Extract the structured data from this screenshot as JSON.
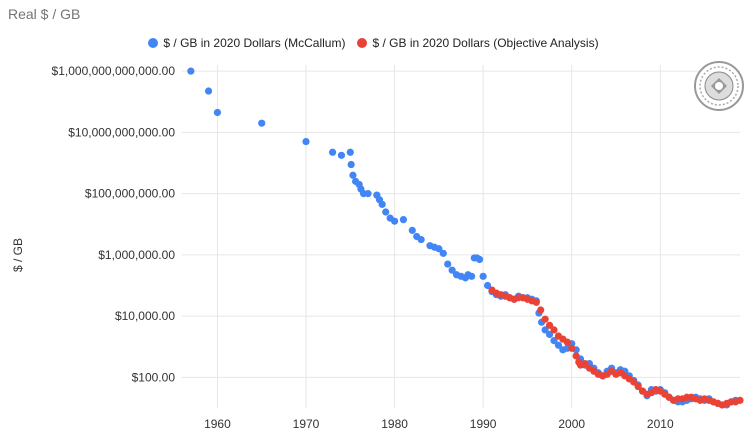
{
  "chart_data": {
    "type": "scatter",
    "title": "Real $ / GB",
    "xlabel": "",
    "ylabel": "$ / GB",
    "y_scale": "log",
    "ylim_log10": [
      1.0,
      12.2
    ],
    "xlim": [
      1956,
      2019
    ],
    "x_ticks": [
      1960,
      1970,
      1980,
      1990,
      2000,
      2010
    ],
    "y_ticks": [
      {
        "log10": 2,
        "label": "$100.00"
      },
      {
        "log10": 4,
        "label": "$10,000.00"
      },
      {
        "log10": 6,
        "label": "$1,000,000.00"
      },
      {
        "log10": 8,
        "label": "$100,000,000.00"
      },
      {
        "log10": 10,
        "label": "$10,000,000,000.00"
      },
      {
        "log10": 12,
        "label": "$1,000,000,000,000.00"
      }
    ],
    "legend_position": "top",
    "series": [
      {
        "name": "$ / GB in 2020 Dollars (McCallum)",
        "color": "#4285f4",
        "x": [
          1957,
          1959,
          1960,
          1965,
          1970,
          1973,
          1974,
          1975,
          1975.1,
          1975.3,
          1975.6,
          1976,
          1976.2,
          1976.5,
          1977,
          1978,
          1978.3,
          1978.6,
          1979,
          1979.5,
          1980,
          1981,
          1982,
          1982.5,
          1983,
          1984,
          1984.5,
          1985,
          1985.5,
          1986,
          1986.5,
          1987,
          1987.5,
          1988,
          1988.3,
          1988.7,
          1989,
          1989.3,
          1989.6,
          1990,
          1990.5,
          1991,
          1991.5,
          1992,
          1992.5,
          1993,
          1993.5,
          1994,
          1994.5,
          1995,
          1995.5,
          1996,
          1996.3,
          1996.6,
          1997,
          1997.5,
          1998,
          1998.5,
          1999,
          1999.5,
          2000,
          2000.5,
          2001,
          2001.5,
          2002,
          2002.5,
          2003,
          2003.5,
          2004,
          2004.5,
          2005,
          2005.5,
          2006,
          2006.5,
          2007,
          2007.5,
          2008,
          2008.5,
          2009,
          2009.5,
          2010,
          2010.5,
          2011,
          2011.5,
          2012,
          2012.5,
          2013,
          2013.5,
          2014,
          2014.5,
          2015,
          2015.5,
          2016,
          2016.5,
          2017,
          2017.5,
          2018,
          2018.5
        ],
        "y_log10": [
          12.0,
          11.35,
          10.65,
          10.3,
          9.7,
          9.35,
          9.25,
          9.35,
          8.95,
          8.6,
          8.4,
          8.3,
          8.15,
          8.0,
          8.0,
          7.95,
          7.8,
          7.65,
          7.4,
          7.2,
          7.1,
          7.15,
          6.8,
          6.6,
          6.5,
          6.3,
          6.25,
          6.2,
          6.05,
          5.7,
          5.5,
          5.35,
          5.3,
          5.25,
          5.35,
          5.3,
          5.9,
          5.9,
          5.85,
          5.3,
          5.0,
          4.8,
          4.7,
          4.65,
          4.7,
          4.6,
          4.55,
          4.65,
          4.6,
          4.6,
          4.55,
          4.5,
          4.1,
          3.8,
          3.55,
          3.4,
          3.2,
          3.05,
          2.9,
          2.95,
          3.1,
          2.9,
          2.6,
          2.4,
          2.45,
          2.3,
          2.15,
          2.05,
          2.2,
          2.3,
          2.15,
          2.25,
          2.2,
          2.05,
          1.9,
          1.75,
          1.55,
          1.4,
          1.6,
          1.55,
          1.6,
          1.5,
          1.35,
          1.25,
          1.2,
          1.2,
          1.25,
          1.3,
          1.35,
          1.3,
          1.25,
          1.3,
          1.2,
          1.15,
          1.1,
          1.1,
          1.2,
          1.25
        ]
      },
      {
        "name": "$ / GB in 2020 Dollars (Objective Analysis)",
        "color": "#ea4335",
        "x": [
          1991,
          1991.5,
          1992,
          1992.5,
          1993,
          1993.5,
          1994,
          1994.5,
          1995,
          1995.5,
          1996,
          1996.5,
          1997,
          1997.5,
          1998,
          1998.5,
          1999,
          1999.5,
          2000,
          2000.5,
          2000.8,
          2001,
          2001.5,
          2002,
          2002.5,
          2003,
          2003.5,
          2004,
          2004.5,
          2005,
          2005.5,
          2006,
          2006.5,
          2007,
          2007.5,
          2008,
          2008.5,
          2009,
          2009.5,
          2010,
          2010.5,
          2011,
          2011.5,
          2012,
          2012.5,
          2013,
          2013.5,
          2014,
          2014.5,
          2015,
          2015.5,
          2016,
          2016.5,
          2017,
          2017.5,
          2018,
          2018.5,
          2019
        ],
        "y_log10": [
          4.85,
          4.75,
          4.7,
          4.65,
          4.6,
          4.55,
          4.6,
          4.6,
          4.55,
          4.5,
          4.45,
          4.2,
          3.9,
          3.7,
          3.55,
          3.35,
          3.25,
          3.15,
          2.95,
          2.7,
          2.5,
          2.4,
          2.45,
          2.3,
          2.2,
          2.1,
          2.05,
          2.1,
          2.2,
          2.1,
          2.15,
          2.05,
          1.95,
          1.85,
          1.7,
          1.55,
          1.45,
          1.5,
          1.6,
          1.55,
          1.45,
          1.35,
          1.25,
          1.3,
          1.3,
          1.35,
          1.35,
          1.3,
          1.25,
          1.3,
          1.25,
          1.2,
          1.15,
          1.1,
          1.15,
          1.2,
          1.2,
          1.25
        ]
      }
    ]
  },
  "legend": {
    "items": [
      {
        "label": "$ / GB in 2020 Dollars (McCallum)",
        "color": "#4285f4"
      },
      {
        "label": "$ / GB in 2020 Dollars (Objective Analysis)",
        "color": "#ea4335"
      }
    ]
  },
  "colors": {
    "grid": "#e6e6e6",
    "axis_text": "#333333"
  }
}
